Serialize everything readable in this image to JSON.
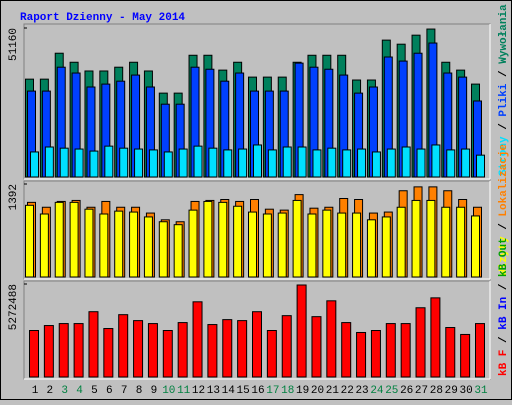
{
  "chart_data": [
    {
      "type": "bar",
      "title": "Raport Dzienny -  May 2014",
      "categories": [
        "1",
        "2",
        "3",
        "4",
        "5",
        "6",
        "7",
        "8",
        "9",
        "10",
        "11",
        "12",
        "13",
        "14",
        "15",
        "16",
        "17",
        "18",
        "19",
        "20",
        "21",
        "22",
        "23",
        "24",
        "25",
        "26",
        "27",
        "28",
        "29",
        "30",
        "31"
      ],
      "highlight_categories": [
        "3",
        "4",
        "10",
        "11",
        "17",
        "18",
        "24",
        "25",
        "31"
      ],
      "category_color": "#000000",
      "highlight_color": "#008040",
      "ylim": [
        0,
        51160
      ],
      "yticks": [
        51160
      ],
      "legend_separator": " / ",
      "series": [
        {
          "name": "Wywołania",
          "color": "#00805c",
          "values": [
            33600,
            33600,
            42500,
            39400,
            36400,
            36400,
            37700,
            39400,
            36400,
            28800,
            28800,
            41800,
            41800,
            36700,
            39400,
            34300,
            34300,
            34300,
            39400,
            41800,
            41800,
            41800,
            33300,
            33300,
            47000,
            45600,
            48700,
            50800,
            39400,
            36700,
            31900
          ]
        },
        {
          "name": "Pliki",
          "color": "#0040ff",
          "values": [
            29500,
            29500,
            37700,
            35700,
            30900,
            31900,
            32900,
            35000,
            30900,
            25000,
            25000,
            37700,
            37000,
            32900,
            35700,
            29500,
            29500,
            29500,
            39100,
            37700,
            37000,
            35000,
            28800,
            30900,
            41200,
            39800,
            42500,
            46000,
            35700,
            34300,
            26100
          ]
        },
        {
          "name": "Strony",
          "color": "#00e0ff",
          "values": [
            8600,
            10300,
            9900,
            9600,
            8900,
            10600,
            9900,
            9600,
            9300,
            8600,
            9600,
            10600,
            9900,
            9300,
            9600,
            11000,
            9300,
            10300,
            10300,
            9300,
            9900,
            9300,
            9600,
            8600,
            9600,
            10300,
            9600,
            11000,
            9300,
            9600,
            7500
          ]
        }
      ]
    },
    {
      "type": "bar",
      "ylim": [
        0,
        1392
      ],
      "yticks": [
        1392
      ],
      "legend_separator": " / ",
      "series": [
        {
          "name": "Lokalizacje",
          "color": "#ff8000",
          "values": [
            1117,
            1044,
            1131,
            1146,
            1044,
            1131,
            1044,
            1044,
            957,
            856,
            827,
            1131,
            1146,
            1160,
            1131,
            1160,
            1015,
            1001,
            1233,
            1030,
            1044,
            1175,
            1160,
            957,
            972,
            1291,
            1349,
            1349,
            1291,
            1160,
            1044
          ]
        },
        {
          "name": "Wizyty",
          "color": "#ffff00",
          "values": [
            1073,
            943,
            1117,
            1117,
            1015,
            943,
            986,
            972,
            899,
            827,
            783,
            1001,
            1131,
            1117,
            1059,
            972,
            943,
            957,
            1146,
            943,
            1001,
            957,
            957,
            856,
            899,
            1044,
            1146,
            1146,
            1044,
            1044,
            914
          ]
        }
      ]
    },
    {
      "type": "bar",
      "ylim": [
        0,
        5272488
      ],
      "yticks": [
        5272488
      ],
      "legend_separator": " / ",
      "series": [
        {
          "name": "kB F",
          "color": "#ff0000",
          "values": [
            2636000,
            2917000,
            3029000,
            3029000,
            3702000,
            2748000,
            3534000,
            3197000,
            3029000,
            2636000,
            3085000,
            4263000,
            2973000,
            3253000,
            3197000,
            3702000,
            2636000,
            3478000,
            5216000,
            3421000,
            4319000,
            3085000,
            2524000,
            2636000,
            3029000,
            3029000,
            3926000,
            4487000,
            2805000,
            2412000,
            3029000
          ]
        }
      ],
      "legend_extra": [
        {
          "name": "kB In",
          "color": "#0000ff"
        },
        {
          "name": "kB Out",
          "color": "#00a000"
        }
      ]
    }
  ]
}
